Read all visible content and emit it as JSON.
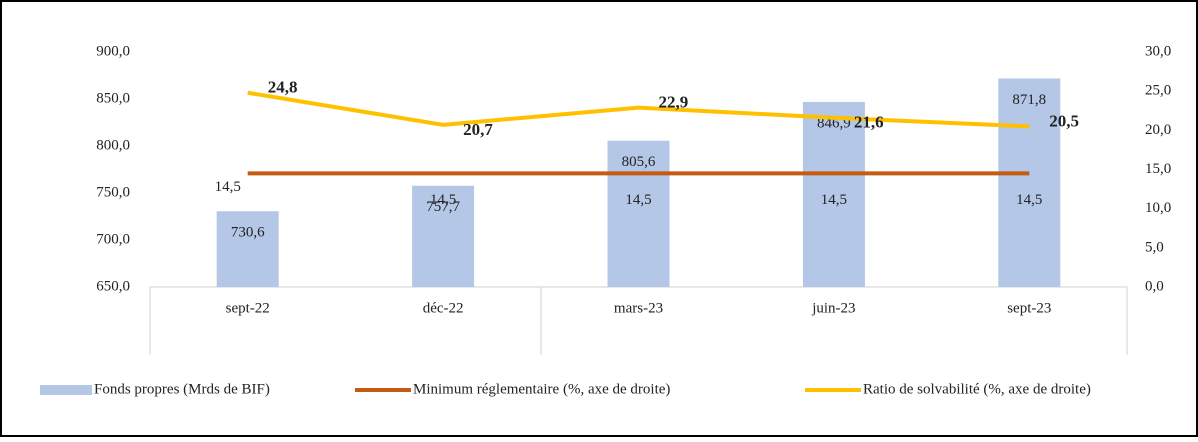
{
  "chart_data": {
    "type": "combo",
    "categories": [
      "sept-22",
      "déc-22",
      "mars-23",
      "juin-23",
      "sept-23"
    ],
    "series": [
      {
        "name": "Fonds propres (Mrds de BIF)",
        "type": "bar",
        "color": "#b4c7e7",
        "values": [
          730.6,
          757.7,
          805.6,
          846.9,
          871.8
        ],
        "value_labels": [
          "730,6",
          "757,7",
          "805,6",
          "846,9",
          "871,8"
        ]
      },
      {
        "name": "Minimum réglementaire (%, axe de droite)",
        "type": "line",
        "axis": "y2",
        "color": "#c55a11",
        "values": [
          14.5,
          14.5,
          14.5,
          14.5,
          14.5
        ],
        "value_labels": [
          "14,5",
          "14,5",
          "14,5",
          "14,5",
          "14,5"
        ]
      },
      {
        "name": "Ratio de solvabilité (%, axe de droite)",
        "type": "line",
        "axis": "y2",
        "color": "#ffc000",
        "values": [
          24.8,
          20.7,
          22.9,
          21.6,
          20.5
        ],
        "value_labels": [
          "24,8",
          "20,7",
          "22,9",
          "21,6",
          "20,5"
        ]
      }
    ],
    "ylim": [
      650,
      900
    ],
    "yticks": [
      {
        "value": 650,
        "label": "650,0"
      },
      {
        "value": 700,
        "label": "700,0"
      },
      {
        "value": 750,
        "label": "750,0"
      },
      {
        "value": 800,
        "label": "800,0"
      },
      {
        "value": 850,
        "label": "850,0"
      },
      {
        "value": 900,
        "label": "900,0"
      }
    ],
    "y2lim": [
      0,
      30
    ],
    "y2ticks": [
      {
        "value": 0,
        "label": "0,0"
      },
      {
        "value": 5,
        "label": "5,0"
      },
      {
        "value": 10,
        "label": "10,0"
      },
      {
        "value": 15,
        "label": "15,0"
      },
      {
        "value": 20,
        "label": "20,0"
      },
      {
        "value": 25,
        "label": "25,0"
      },
      {
        "value": 30,
        "label": "30,0"
      }
    ],
    "legend": "bottom"
  }
}
